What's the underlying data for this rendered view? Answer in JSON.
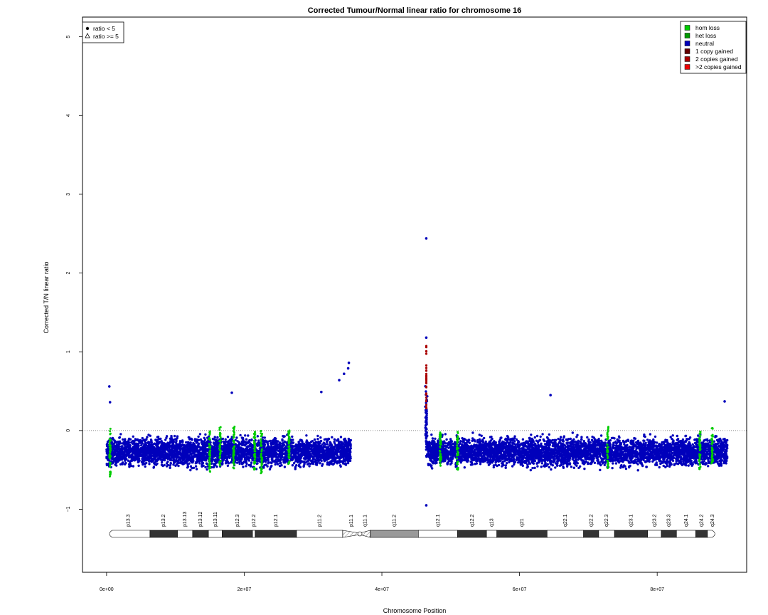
{
  "chart_data": {
    "type": "scatter",
    "title": "Corrected Tumour/Normal linear ratio for chromosome  16",
    "xlabel": "Chromosome Position",
    "ylabel": "Corrected T/N linear ratio",
    "xlim": [
      -3500000,
      93000000
    ],
    "ylim": [
      -1.8,
      5.25
    ],
    "x_ticks": [
      0,
      20000000,
      40000000,
      60000000,
      80000000
    ],
    "x_tick_labels": [
      "0e+00",
      "2e+07",
      "4e+07",
      "6e+07",
      "8e+07"
    ],
    "y_ticks": [
      -1,
      0,
      1,
      2,
      3,
      4,
      5
    ],
    "y_tick_labels": [
      "−1",
      "0",
      "1",
      "2",
      "3",
      "4",
      "5"
    ],
    "reference_line": 0,
    "grid": false,
    "shape_legend": {
      "placement": "top-left",
      "entries": [
        {
          "symbol": "dot",
          "label": "ratio < 5"
        },
        {
          "symbol": "triangle",
          "label": "ratio >= 5"
        }
      ]
    },
    "status_legend": {
      "placement": "top-right",
      "entries": [
        {
          "label": "hom loss",
          "color": "#00cc00"
        },
        {
          "label": "het loss",
          "color": "#009900"
        },
        {
          "label": "neutral",
          "color": "#0000bb"
        },
        {
          "label": "1 copy gained",
          "color": "#660000"
        },
        {
          "label": "2 copies gained",
          "color": "#aa0000"
        },
        {
          "label": ">2 copies gained",
          "color": "#ee0000"
        }
      ]
    },
    "segments": [
      {
        "status": "neutral",
        "x_start": 0,
        "x_end": 35500000,
        "y_center": -0.27,
        "y_spread": 0.25
      },
      {
        "status": "neutral",
        "x_start": 46300000,
        "x_end": 46600000,
        "y_center": 0.0,
        "y_spread": 0.7
      },
      {
        "status": "neutral",
        "x_start": 46700000,
        "x_end": 90200000,
        "y_center": -0.27,
        "y_spread": 0.25
      }
    ],
    "outliers": [
      {
        "x": 400000,
        "y": 0.56,
        "status": "neutral"
      },
      {
        "x": 500000,
        "y": 0.36,
        "status": "neutral"
      },
      {
        "x": 18200000,
        "y": 0.48,
        "status": "neutral"
      },
      {
        "x": 31200000,
        "y": 0.49,
        "status": "neutral"
      },
      {
        "x": 33800000,
        "y": 0.64,
        "status": "neutral"
      },
      {
        "x": 34500000,
        "y": 0.72,
        "status": "neutral"
      },
      {
        "x": 35200000,
        "y": 0.86,
        "status": "neutral"
      },
      {
        "x": 35100000,
        "y": 0.79,
        "status": "neutral"
      },
      {
        "x": 46450000,
        "y": 2.44,
        "status": "neutral"
      },
      {
        "x": 46450000,
        "y": 1.18,
        "status": "neutral"
      },
      {
        "x": 46450000,
        "y": -0.95,
        "status": "neutral"
      },
      {
        "x": 64500000,
        "y": 0.45,
        "status": "neutral"
      },
      {
        "x": 89800000,
        "y": 0.37,
        "status": "neutral"
      }
    ],
    "loss_regions": [
      {
        "x": 500000,
        "y_range": [
          -0.6,
          0.05
        ]
      },
      {
        "x": 15000000,
        "y_range": [
          -0.55,
          0.0
        ]
      },
      {
        "x": 16500000,
        "y_range": [
          -0.5,
          0.05
        ]
      },
      {
        "x": 18500000,
        "y_range": [
          -0.5,
          0.05
        ]
      },
      {
        "x": 21500000,
        "y_range": [
          -0.5,
          0.0
        ]
      },
      {
        "x": 22500000,
        "y_range": [
          -0.55,
          0.0
        ]
      },
      {
        "x": 26500000,
        "y_range": [
          -0.45,
          0.0
        ]
      },
      {
        "x": 48500000,
        "y_range": [
          -0.45,
          0.0
        ]
      },
      {
        "x": 51000000,
        "y_range": [
          -0.5,
          0.0
        ]
      },
      {
        "x": 72800000,
        "y_range": [
          -0.5,
          0.05
        ]
      },
      {
        "x": 86200000,
        "y_range": [
          -0.5,
          0.0
        ]
      },
      {
        "x": 88000000,
        "y_range": [
          -0.45,
          0.05
        ]
      }
    ],
    "gain_region": {
      "x": 46450000,
      "y_range": [
        0.25,
        1.1
      ]
    },
    "ideogram": {
      "centromere": 36800000,
      "bands": [
        {
          "name": "p13.3",
          "start": 0,
          "end": 6300000,
          "stain": "white"
        },
        {
          "name": "p13.2",
          "start": 6300000,
          "end": 10300000,
          "stain": "dark"
        },
        {
          "name": "p13.13",
          "start": 10300000,
          "end": 12500000,
          "stain": "white"
        },
        {
          "name": "p13.12",
          "start": 12500000,
          "end": 14800000,
          "stain": "dark"
        },
        {
          "name": "p13.11",
          "start": 14800000,
          "end": 16800000,
          "stain": "white"
        },
        {
          "name": "p12.3",
          "start": 16800000,
          "end": 21200000,
          "stain": "dark"
        },
        {
          "name": "p12.2",
          "start": 21200000,
          "end": 21600000,
          "stain": "white"
        },
        {
          "name": "p12.1",
          "start": 21600000,
          "end": 27600000,
          "stain": "dark"
        },
        {
          "name": "p11.2",
          "start": 27600000,
          "end": 34300000,
          "stain": "white"
        },
        {
          "name": "p11.1",
          "start": 34300000,
          "end": 36800000,
          "stain": "hatch"
        },
        {
          "name": "q11.1",
          "start": 36800000,
          "end": 38300000,
          "stain": "hatch"
        },
        {
          "name": "q11.2",
          "start": 38300000,
          "end": 45300000,
          "stain": "gray"
        },
        {
          "name": "q12.1",
          "start": 45300000,
          "end": 51000000,
          "stain": "white"
        },
        {
          "name": "q12.2",
          "start": 51000000,
          "end": 55200000,
          "stain": "dark"
        },
        {
          "name": "q13",
          "start": 55200000,
          "end": 56700000,
          "stain": "white"
        },
        {
          "name": "q21",
          "start": 56700000,
          "end": 64000000,
          "stain": "dark"
        },
        {
          "name": "q22.1",
          "start": 64000000,
          "end": 69300000,
          "stain": "white"
        },
        {
          "name": "q22.2",
          "start": 69300000,
          "end": 71500000,
          "stain": "dark"
        },
        {
          "name": "q22.3",
          "start": 71500000,
          "end": 73800000,
          "stain": "white"
        },
        {
          "name": "q23.1",
          "start": 73800000,
          "end": 78600000,
          "stain": "dark"
        },
        {
          "name": "q23.2",
          "start": 78600000,
          "end": 80600000,
          "stain": "white"
        },
        {
          "name": "q23.3",
          "start": 80600000,
          "end": 82800000,
          "stain": "dark"
        },
        {
          "name": "q24.1",
          "start": 82800000,
          "end": 85600000,
          "stain": "white"
        },
        {
          "name": "q24.2",
          "start": 85600000,
          "end": 87300000,
          "stain": "dark"
        },
        {
          "name": "q24.3",
          "start": 87300000,
          "end": 88800000,
          "stain": "white"
        }
      ]
    }
  }
}
